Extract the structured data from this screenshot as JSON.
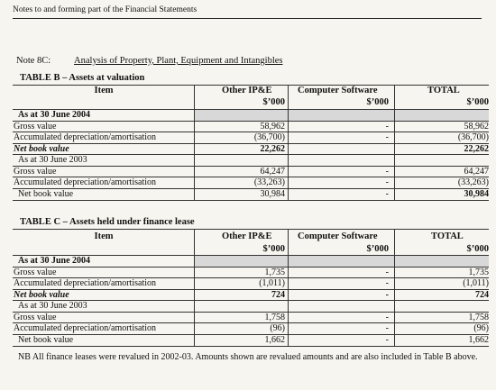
{
  "header": {
    "text": "Notes to and forming part of the Financial Statements"
  },
  "note": {
    "id": "Note 8C:",
    "title": "Analysis of Property, Plant, Equipment and Intangibles"
  },
  "table_b": {
    "title": "TABLE  B – Assets at valuation",
    "columns": {
      "item": "Item",
      "ip": "Other IP&E",
      "sw": "Computer Software",
      "total": "TOTAL",
      "unit": "$’000"
    },
    "rows": [
      {
        "item": "As at 30 June 2004",
        "ip": "",
        "sw": "",
        "total": ""
      },
      {
        "item": "Gross value",
        "ip": "58,962",
        "sw": "-",
        "total": "58,962"
      },
      {
        "item": "Accumulated depreciation/amortisation",
        "ip": "(36,700)",
        "sw": "-",
        "total": "(36,700)"
      },
      {
        "item": "Net book value",
        "ip": "22,262",
        "sw": "",
        "total": "22,262"
      },
      {
        "item": "As at 30 June 2003",
        "ip": "",
        "sw": "",
        "total": ""
      },
      {
        "item": "Gross value",
        "ip": "64,247",
        "sw": "-",
        "total": "64,247"
      },
      {
        "item": "Accumulated depreciation/amortisation",
        "ip": "(33,263)",
        "sw": "-",
        "total": "(33,263)"
      },
      {
        "item": "Net book value",
        "ip": "30,984",
        "sw": "-",
        "total": "30,984"
      }
    ]
  },
  "table_c": {
    "title": "TABLE  C – Assets held under finance lease",
    "columns": {
      "item": "Item",
      "ip": "Other IP&E",
      "sw": "Computer Software",
      "total": "TOTAL",
      "unit": "$’000"
    },
    "rows": [
      {
        "item": "As at 30 June 2004",
        "ip": "",
        "sw": "",
        "total": ""
      },
      {
        "item": "Gross value",
        "ip": "1,735",
        "sw": "-",
        "total": "1,735"
      },
      {
        "item": "Accumulated depreciation/amortisation",
        "ip": "(1,011)",
        "sw": "-",
        "total": "(1,011)"
      },
      {
        "item": "Net book value",
        "ip": "724",
        "sw": "-",
        "total": "724"
      },
      {
        "item": "As at 30 June 2003",
        "ip": "",
        "sw": "",
        "total": ""
      },
      {
        "item": "Gross value",
        "ip": "1,758",
        "sw": "-",
        "total": "1,758"
      },
      {
        "item": "Accumulated depreciation/amortisation",
        "ip": "(96)",
        "sw": "-",
        "total": "(96)"
      },
      {
        "item": "Net book value",
        "ip": "1,662",
        "sw": "-",
        "total": "1,662"
      }
    ]
  },
  "footnote": "NB All finance leases were revalued in 2002-03.  Amounts shown are revalued amounts and are also included in Table B above."
}
